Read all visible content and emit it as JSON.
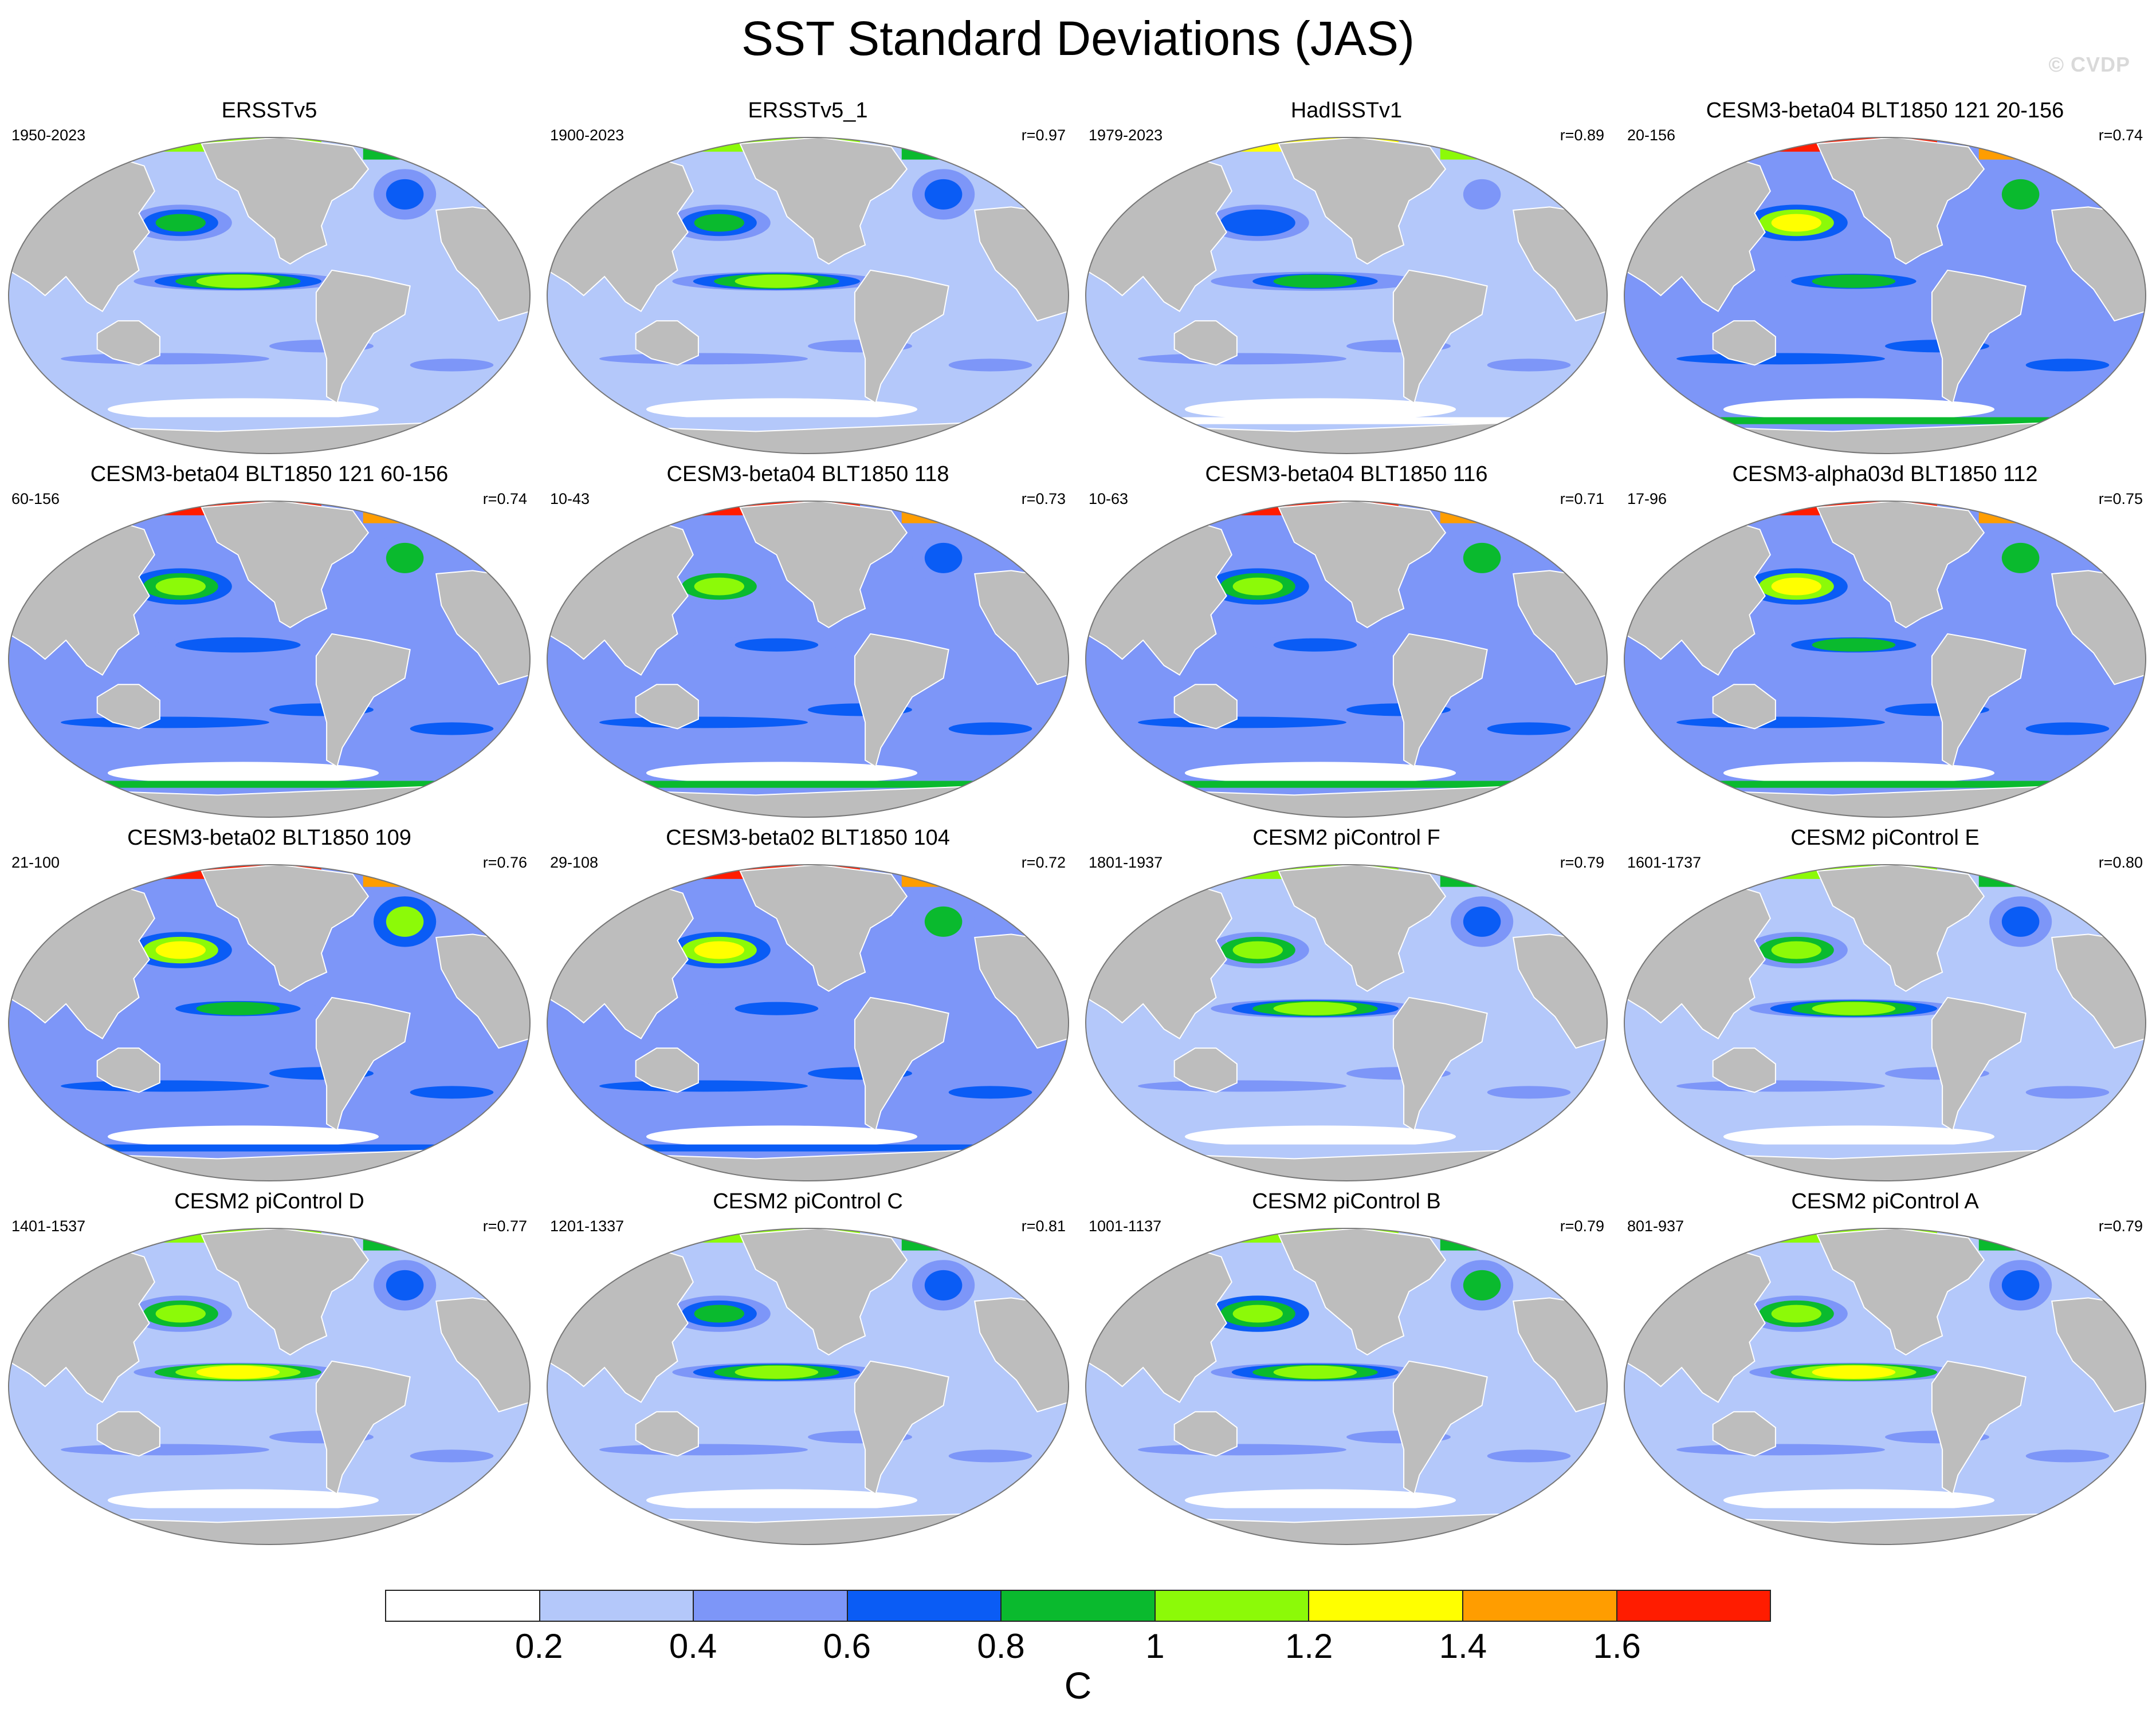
{
  "title": "SST Standard Deviations (JAS)",
  "watermark": "© CVDP",
  "colors": {
    "land": "#bdbdbd",
    "coast": "#ffffff",
    "outline": "#777777",
    "levels": [
      "#ffffff",
      "#b4c8fa",
      "#7d96f8",
      "#0a5cf5",
      "#0aba2e",
      "#8cfa08",
      "#ffff00",
      "#ff9d00",
      "#ff1c00"
    ]
  },
  "colorbar": {
    "ticks": [
      "0.2",
      "0.4",
      "0.6",
      "0.8",
      "1",
      "1.2",
      "1.4",
      "1.6"
    ],
    "units": "C"
  },
  "panels": [
    {
      "title": "ERSSTv5",
      "years": "1950-2023",
      "r": "",
      "enso": 1.0,
      "north_pacific": 0.9,
      "southern_ocean": 0.2,
      "arctic": 1.1,
      "background": 0.35
    },
    {
      "title": "ERSSTv5_1",
      "years": "1900-2023",
      "r": "r=0.97",
      "enso": 1.0,
      "north_pacific": 0.95,
      "southern_ocean": 0.2,
      "arctic": 1.1,
      "background": 0.38
    },
    {
      "title": "HadISSTv1",
      "years": "1979-2023",
      "r": "r=0.89",
      "enso": 0.9,
      "north_pacific": 0.75,
      "southern_ocean": 0.15,
      "arctic": 1.3,
      "background": 0.3
    },
    {
      "title": "CESM3-beta04 BLT1850 121 20-156",
      "years": "20-156",
      "r": "r=0.74",
      "enso": 0.8,
      "north_pacific": 1.25,
      "southern_ocean": 0.85,
      "arctic": 1.6,
      "background": 0.45
    },
    {
      "title": "CESM3-beta04 BLT1850 121 60-156",
      "years": "60-156",
      "r": "r=0.74",
      "enso": 0.75,
      "north_pacific": 1.2,
      "southern_ocean": 0.85,
      "arctic": 1.6,
      "background": 0.45
    },
    {
      "title": "CESM3-beta04 BLT1850 118",
      "years": "10-43",
      "r": "r=0.73",
      "enso": 0.7,
      "north_pacific": 1.0,
      "southern_ocean": 0.85,
      "arctic": 1.6,
      "background": 0.4
    },
    {
      "title": "CESM3-beta04 BLT1850 116",
      "years": "10-63",
      "r": "r=0.71",
      "enso": 0.7,
      "north_pacific": 1.1,
      "southern_ocean": 0.8,
      "arctic": 1.6,
      "background": 0.4
    },
    {
      "title": "CESM3-alpha03d BLT1850 112",
      "years": "17-96",
      "r": "r=0.75",
      "enso": 0.85,
      "north_pacific": 1.25,
      "southern_ocean": 0.8,
      "arctic": 1.6,
      "background": 0.45
    },
    {
      "title": "CESM3-beta02 BLT1850 109",
      "years": "21-100",
      "r": "r=0.76",
      "enso": 0.8,
      "north_pacific": 1.4,
      "southern_ocean": 0.75,
      "arctic": 1.6,
      "background": 0.45
    },
    {
      "title": "CESM3-beta02 BLT1850 104",
      "years": "29-108",
      "r": "r=0.72",
      "enso": 0.7,
      "north_pacific": 1.3,
      "southern_ocean": 0.75,
      "arctic": 1.6,
      "background": 0.42
    },
    {
      "title": "CESM2 piControl F",
      "years": "1801-1937",
      "r": "r=0.79",
      "enso": 1.05,
      "north_pacific": 1.0,
      "southern_ocean": 0.3,
      "arctic": 1.1,
      "background": 0.35
    },
    {
      "title": "CESM2 piControl E",
      "years": "1601-1737",
      "r": "r=0.80",
      "enso": 1.05,
      "north_pacific": 1.0,
      "southern_ocean": 0.3,
      "arctic": 1.1,
      "background": 0.35
    },
    {
      "title": "CESM2 piControl D",
      "years": "1401-1537",
      "r": "r=0.77",
      "enso": 1.3,
      "north_pacific": 1.0,
      "southern_ocean": 0.25,
      "arctic": 1.1,
      "background": 0.33
    },
    {
      "title": "CESM2 piControl C",
      "years": "1201-1337",
      "r": "r=0.81",
      "enso": 1.2,
      "north_pacific": 0.95,
      "southern_ocean": 0.25,
      "arctic": 1.1,
      "background": 0.33
    },
    {
      "title": "CESM2 piControl B",
      "years": "1001-1137",
      "r": "r=0.79",
      "enso": 1.2,
      "north_pacific": 1.2,
      "southern_ocean": 0.25,
      "arctic": 1.1,
      "background": 0.33
    },
    {
      "title": "CESM2 piControl A",
      "years": "801-937",
      "r": "r=0.79",
      "enso": 1.25,
      "north_pacific": 1.0,
      "southern_ocean": 0.25,
      "arctic": 1.1,
      "background": 0.33
    }
  ]
}
